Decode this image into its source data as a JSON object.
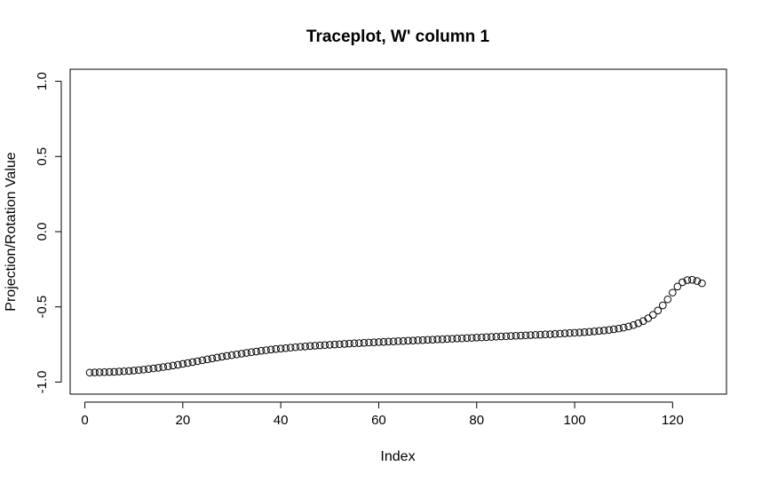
{
  "chart_data": {
    "type": "scatter",
    "title": "Traceplot, W' column 1",
    "xlabel": "Index",
    "ylabel": "Projection/Rotation Value",
    "xlim": [
      -3.0,
      131.0
    ],
    "ylim": [
      -1.08,
      1.08
    ],
    "xticks": [
      0,
      20,
      40,
      60,
      80,
      100,
      120
    ],
    "xtick_labels": [
      "0",
      "20",
      "40",
      "60",
      "80",
      "100",
      "120"
    ],
    "yticks": [
      -1.0,
      -0.5,
      0.0,
      0.5,
      1.0
    ],
    "ytick_labels": [
      "-1.0",
      "-0.5",
      "0.0",
      "0.5",
      "1.0"
    ],
    "grid": false,
    "marker": "open-circle",
    "series": [
      {
        "x": [
          1,
          2,
          3,
          4,
          5,
          6,
          7,
          8,
          9,
          10,
          11,
          12,
          13,
          14,
          15,
          16,
          17,
          18,
          19,
          20,
          21,
          22,
          23,
          24,
          25,
          26,
          27,
          28,
          29,
          30,
          31,
          32,
          33,
          34,
          35,
          36,
          37,
          38,
          39,
          40,
          41,
          42,
          43,
          44,
          45,
          46,
          47,
          48,
          49,
          50,
          51,
          52,
          53,
          54,
          55,
          56,
          57,
          58,
          59,
          60,
          61,
          62,
          63,
          64,
          65,
          66,
          67,
          68,
          69,
          70,
          71,
          72,
          73,
          74,
          75,
          76,
          77,
          78,
          79,
          80,
          81,
          82,
          83,
          84,
          85,
          86,
          87,
          88,
          89,
          90,
          91,
          92,
          93,
          94,
          95,
          96,
          97,
          98,
          99,
          100,
          101,
          102,
          103,
          104,
          105,
          106,
          107,
          108,
          109,
          110,
          111,
          112,
          113,
          114,
          115,
          116,
          117,
          118,
          119,
          120,
          121,
          122,
          123,
          124,
          125,
          126
        ],
        "y": [
          -0.937,
          -0.936,
          -0.935,
          -0.934,
          -0.933,
          -0.932,
          -0.93,
          -0.928,
          -0.926,
          -0.923,
          -0.92,
          -0.917,
          -0.913,
          -0.909,
          -0.905,
          -0.9,
          -0.895,
          -0.89,
          -0.885,
          -0.879,
          -0.873,
          -0.867,
          -0.861,
          -0.855,
          -0.849,
          -0.843,
          -0.837,
          -0.831,
          -0.826,
          -0.821,
          -0.816,
          -0.811,
          -0.806,
          -0.801,
          -0.797,
          -0.792,
          -0.788,
          -0.784,
          -0.78,
          -0.777,
          -0.774,
          -0.771,
          -0.768,
          -0.765,
          -0.763,
          -0.76,
          -0.758,
          -0.756,
          -0.754,
          -0.752,
          -0.75,
          -0.748,
          -0.746,
          -0.744,
          -0.742,
          -0.741,
          -0.739,
          -0.737,
          -0.736,
          -0.734,
          -0.733,
          -0.731,
          -0.73,
          -0.728,
          -0.727,
          -0.725,
          -0.724,
          -0.722,
          -0.721,
          -0.719,
          -0.718,
          -0.716,
          -0.715,
          -0.713,
          -0.712,
          -0.71,
          -0.709,
          -0.707,
          -0.706,
          -0.704,
          -0.703,
          -0.701,
          -0.7,
          -0.698,
          -0.697,
          -0.695,
          -0.694,
          -0.692,
          -0.691,
          -0.689,
          -0.688,
          -0.686,
          -0.685,
          -0.683,
          -0.682,
          -0.68,
          -0.678,
          -0.676,
          -0.674,
          -0.672,
          -0.67,
          -0.668,
          -0.666,
          -0.663,
          -0.66,
          -0.657,
          -0.653,
          -0.649,
          -0.644,
          -0.638,
          -0.63,
          -0.621,
          -0.609,
          -0.594,
          -0.576,
          -0.553,
          -0.524,
          -0.49,
          -0.45,
          -0.405,
          -0.365,
          -0.336,
          -0.322,
          -0.32,
          -0.328,
          -0.343
        ]
      }
    ]
  }
}
